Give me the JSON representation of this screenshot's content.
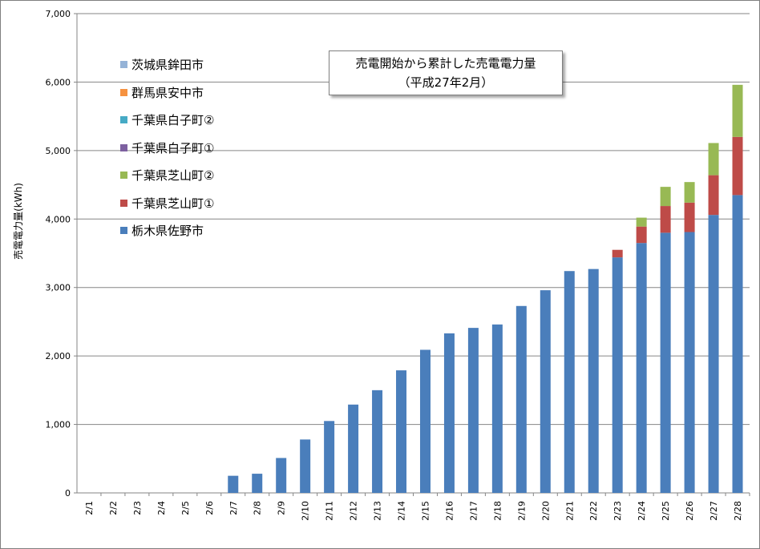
{
  "chart_data": {
    "type": "bar",
    "stacked": true,
    "title": "売電開始から累計した売電電力量",
    "subtitle": "（平成27年2月）",
    "ylabel": "売電電力量(kWh)",
    "xlabel": "",
    "ylim": [
      0,
      7000
    ],
    "yticks": [
      0,
      1000,
      2000,
      3000,
      4000,
      5000,
      6000,
      7000
    ],
    "ytick_labels": [
      "0",
      "1,000",
      "2,000",
      "3,000",
      "4,000",
      "5,000",
      "6,000",
      "7,000"
    ],
    "grid": true,
    "legend_position": "top-left",
    "categories": [
      "2/1",
      "2/2",
      "2/3",
      "2/4",
      "2/5",
      "2/6",
      "2/7",
      "2/8",
      "2/9",
      "2/10",
      "2/11",
      "2/12",
      "2/13",
      "2/14",
      "2/15",
      "2/16",
      "2/17",
      "2/18",
      "2/19",
      "2/20",
      "2/21",
      "2/22",
      "2/23",
      "2/24",
      "2/25",
      "2/26",
      "2/27",
      "2/28"
    ],
    "series": [
      {
        "name": "栃木県佐野市",
        "color": "#4a7ebb",
        "values": [
          0,
          0,
          0,
          0,
          0,
          0,
          250,
          280,
          510,
          780,
          1050,
          1290,
          1500,
          1790,
          2090,
          2330,
          2410,
          2460,
          2730,
          2960,
          3240,
          3270,
          3440,
          3650,
          3800,
          3810,
          4060,
          4350
        ]
      },
      {
        "name": "千葉県芝山町①",
        "color": "#be4b48",
        "values": [
          0,
          0,
          0,
          0,
          0,
          0,
          0,
          0,
          0,
          0,
          0,
          0,
          0,
          0,
          0,
          0,
          0,
          0,
          0,
          0,
          0,
          0,
          110,
          240,
          390,
          430,
          580,
          850
        ]
      },
      {
        "name": "千葉県芝山町②",
        "color": "#98b954",
        "values": [
          0,
          0,
          0,
          0,
          0,
          0,
          0,
          0,
          0,
          0,
          0,
          0,
          0,
          0,
          0,
          0,
          0,
          0,
          0,
          0,
          0,
          0,
          0,
          130,
          280,
          300,
          470,
          760
        ]
      },
      {
        "name": "千葉県白子町①",
        "color": "#7d60a0",
        "values": [
          0,
          0,
          0,
          0,
          0,
          0,
          0,
          0,
          0,
          0,
          0,
          0,
          0,
          0,
          0,
          0,
          0,
          0,
          0,
          0,
          0,
          0,
          0,
          0,
          0,
          0,
          0,
          0
        ]
      },
      {
        "name": "千葉県白子町②",
        "color": "#46aac5",
        "values": [
          0,
          0,
          0,
          0,
          0,
          0,
          0,
          0,
          0,
          0,
          0,
          0,
          0,
          0,
          0,
          0,
          0,
          0,
          0,
          0,
          0,
          0,
          0,
          0,
          0,
          0,
          0,
          0
        ]
      },
      {
        "name": "群馬県安中市",
        "color": "#f69240",
        "values": [
          0,
          0,
          0,
          0,
          0,
          0,
          0,
          0,
          0,
          0,
          0,
          0,
          0,
          0,
          0,
          0,
          0,
          0,
          0,
          0,
          0,
          0,
          0,
          0,
          0,
          0,
          0,
          0
        ]
      },
      {
        "name": "茨城県鉾田市",
        "color": "#95b3d7",
        "values": [
          0,
          0,
          0,
          0,
          0,
          0,
          0,
          0,
          0,
          0,
          0,
          0,
          0,
          0,
          0,
          0,
          0,
          0,
          0,
          0,
          0,
          0,
          0,
          0,
          0,
          0,
          0,
          0
        ]
      }
    ],
    "legend_order": [
      "茨城県鉾田市",
      "群馬県安中市",
      "千葉県白子町②",
      "千葉県白子町①",
      "千葉県芝山町②",
      "千葉県芝山町①",
      "栃木県佐野市"
    ]
  }
}
